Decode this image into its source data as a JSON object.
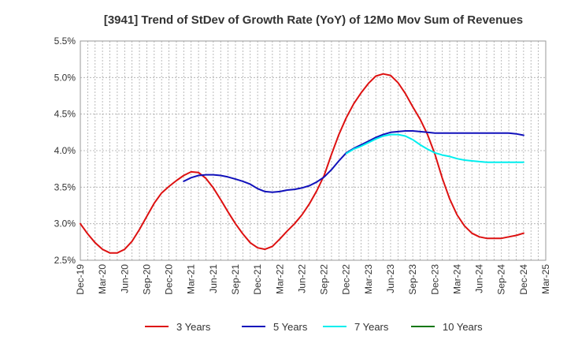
{
  "chart_data": {
    "type": "line",
    "title": "[3941]  Trend of StDev of Growth Rate (YoY) of 12Mo Mov Sum of Revenues",
    "xlabel": "",
    "ylabel": "",
    "ylim": [
      2.5,
      5.5
    ],
    "y_ticks": [
      2.5,
      3.0,
      3.5,
      4.0,
      4.5,
      5.0,
      5.5
    ],
    "y_tick_labels": [
      "2.5%",
      "3.0%",
      "3.5%",
      "4.0%",
      "4.5%",
      "5.0%",
      "5.5%"
    ],
    "x_range": [
      0,
      63
    ],
    "x_ticks": [
      0,
      3,
      6,
      9,
      12,
      15,
      18,
      21,
      24,
      27,
      30,
      33,
      36,
      39,
      42,
      45,
      48,
      51,
      54,
      57,
      60,
      63
    ],
    "x_tick_labels": [
      "Dec-19",
      "Mar-20",
      "Jun-20",
      "Sep-20",
      "Dec-20",
      "Mar-21",
      "Jun-21",
      "Sep-21",
      "Dec-21",
      "Mar-22",
      "Jun-22",
      "Sep-22",
      "Dec-22",
      "Mar-23",
      "Jun-23",
      "Sep-23",
      "Dec-23",
      "Mar-24",
      "Jun-24",
      "Sep-24",
      "Dec-24",
      "Mar-25"
    ],
    "grid": true,
    "legend_position": "bottom",
    "series": [
      {
        "name": "3 Years",
        "color": "#dd1111",
        "x": [
          0,
          1,
          2,
          3,
          4,
          5,
          6,
          7,
          8,
          9,
          10,
          11,
          12,
          13,
          14,
          15,
          16,
          17,
          18,
          19,
          20,
          21,
          22,
          23,
          24,
          25,
          26,
          27,
          28,
          29,
          30,
          31,
          32,
          33,
          34,
          35,
          36,
          37,
          38,
          39,
          40,
          41,
          42,
          43,
          44,
          45,
          46,
          47,
          48,
          49,
          50,
          51,
          52,
          53,
          54,
          55,
          56,
          57,
          58,
          59,
          60
        ],
        "values": [
          3.0,
          2.86,
          2.74,
          2.65,
          2.6,
          2.6,
          2.65,
          2.76,
          2.92,
          3.1,
          3.28,
          3.42,
          3.51,
          3.59,
          3.66,
          3.71,
          3.7,
          3.62,
          3.49,
          3.33,
          3.16,
          3.0,
          2.86,
          2.74,
          2.67,
          2.65,
          2.69,
          2.79,
          2.9,
          3.0,
          3.12,
          3.27,
          3.45,
          3.66,
          3.95,
          4.22,
          4.45,
          4.64,
          4.79,
          4.92,
          5.02,
          5.05,
          5.03,
          4.93,
          4.78,
          4.6,
          4.43,
          4.22,
          3.95,
          3.62,
          3.34,
          3.12,
          2.97,
          2.87,
          2.82,
          2.8,
          2.8,
          2.8,
          2.82,
          2.84,
          2.87
        ]
      },
      {
        "name": "5 Years",
        "color": "#1111bb",
        "x": [
          14,
          15,
          16,
          17,
          18,
          19,
          20,
          21,
          22,
          23,
          24,
          25,
          26,
          27,
          28,
          29,
          30,
          31,
          32,
          33,
          34,
          35,
          36,
          37,
          38,
          39,
          40,
          41,
          42,
          43,
          44,
          45,
          46,
          47,
          48,
          49,
          50,
          51,
          52,
          53,
          54,
          55,
          56,
          57,
          58,
          59,
          60
        ],
        "values": [
          3.58,
          3.63,
          3.66,
          3.67,
          3.67,
          3.66,
          3.64,
          3.61,
          3.58,
          3.54,
          3.48,
          3.44,
          3.43,
          3.44,
          3.46,
          3.47,
          3.49,
          3.52,
          3.57,
          3.64,
          3.74,
          3.86,
          3.97,
          4.03,
          4.08,
          4.13,
          4.18,
          4.22,
          4.25,
          4.26,
          4.27,
          4.27,
          4.26,
          4.25,
          4.24,
          4.24,
          4.24,
          4.24,
          4.24,
          4.24,
          4.24,
          4.24,
          4.24,
          4.24,
          4.24,
          4.23,
          4.21
        ]
      },
      {
        "name": "7 Years",
        "color": "#00eeee",
        "x": [
          36,
          37,
          38,
          39,
          40,
          41,
          42,
          43,
          44,
          45,
          46,
          47,
          48,
          49,
          50,
          51,
          52,
          53,
          54,
          55,
          56,
          57,
          58,
          59,
          60
        ],
        "values": [
          3.96,
          4.02,
          4.06,
          4.11,
          4.16,
          4.2,
          4.22,
          4.22,
          4.2,
          4.15,
          4.08,
          4.02,
          3.97,
          3.94,
          3.92,
          3.89,
          3.87,
          3.86,
          3.85,
          3.84,
          3.84,
          3.84,
          3.84,
          3.84,
          3.84
        ]
      },
      {
        "name": "10 Years",
        "color": "#117711",
        "x": [],
        "values": []
      }
    ]
  }
}
